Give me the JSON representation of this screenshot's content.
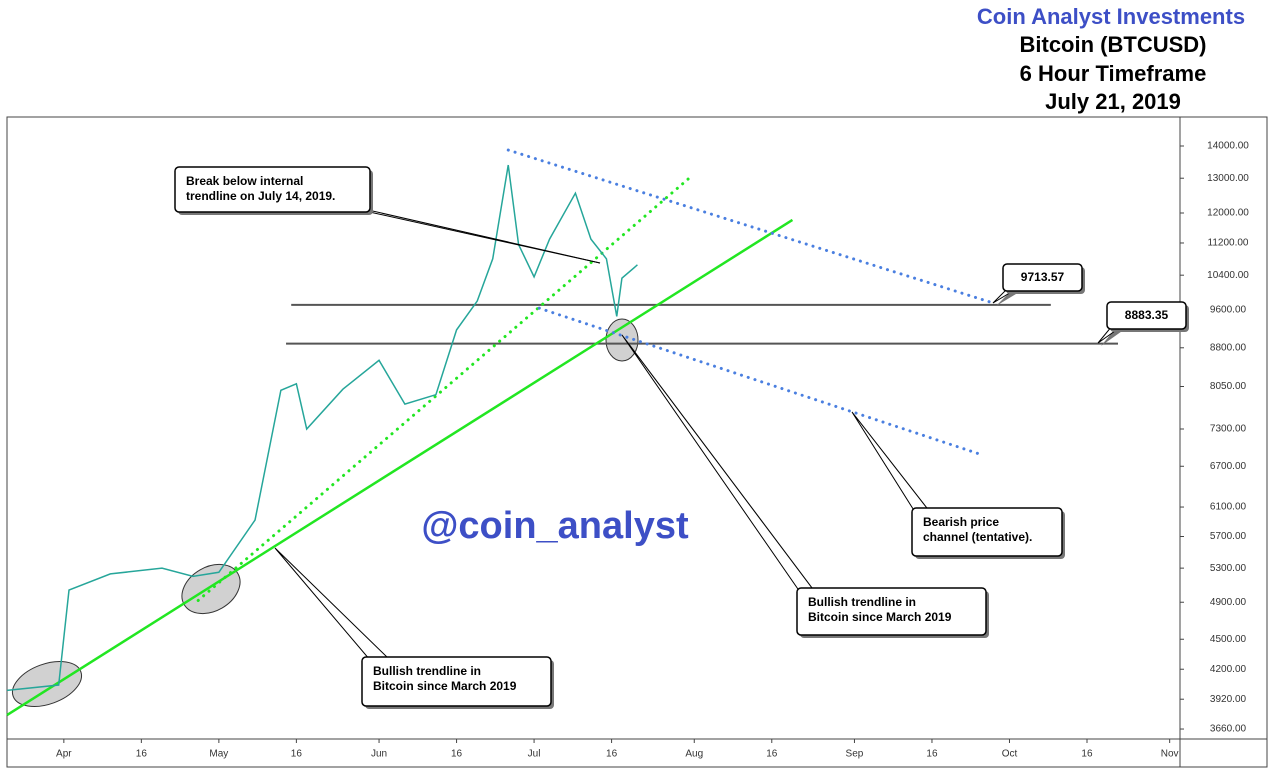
{
  "header": {
    "brand": "Coin Analyst Investments",
    "title": "Bitcoin (BTCUSD)",
    "timeframe": "6 Hour Timeframe",
    "date": "July 21, 2019"
  },
  "chart_data": {
    "type": "line",
    "x": [
      "2019-03-21",
      "2019-03-31",
      "2019-04-02",
      "2019-04-10",
      "2019-04-20",
      "2019-04-26",
      "2019-05-01",
      "2019-05-08",
      "2019-05-13",
      "2019-05-16",
      "2019-05-18",
      "2019-05-25",
      "2019-06-01",
      "2019-06-06",
      "2019-06-12",
      "2019-06-16",
      "2019-06-20",
      "2019-06-23",
      "2019-06-26",
      "2019-06-28",
      "2019-07-01",
      "2019-07-04",
      "2019-07-09",
      "2019-07-12",
      "2019-07-15",
      "2019-07-17",
      "2019-07-18",
      "2019-07-21"
    ],
    "values": [
      4000,
      4050,
      5040,
      5230,
      5300,
      5200,
      5250,
      5920,
      7980,
      8100,
      7300,
      8000,
      8550,
      7730,
      7900,
      9170,
      9800,
      10800,
      13400,
      11160,
      10360,
      11300,
      12560,
      11300,
      10800,
      9460,
      10330,
      10650
    ],
    "color": "#26a69a",
    "log_scale": true,
    "xlim": [
      "2019-03-21",
      "2019-11-03"
    ],
    "ylim": [
      3577,
      14932
    ],
    "yticks": [
      {
        "value": 14000,
        "label": "14000.00"
      },
      {
        "value": 13000,
        "label": "13000.00"
      },
      {
        "value": 12000,
        "label": "12000.00"
      },
      {
        "value": 11200,
        "label": "11200.00"
      },
      {
        "value": 10400,
        "label": "10400.00"
      },
      {
        "value": 9600,
        "label": "9600.00"
      },
      {
        "value": 8800,
        "label": "8800.00"
      },
      {
        "value": 8050,
        "label": "8050.00"
      },
      {
        "value": 7300,
        "label": "7300.00"
      },
      {
        "value": 6700,
        "label": "6700.00"
      },
      {
        "value": 6100,
        "label": "6100.00"
      },
      {
        "value": 5700,
        "label": "5700.00"
      },
      {
        "value": 5300,
        "label": "5300.00"
      },
      {
        "value": 4900,
        "label": "4900.00"
      },
      {
        "value": 4500,
        "label": "4500.00"
      },
      {
        "value": 4200,
        "label": "4200.00"
      },
      {
        "value": 3920,
        "label": "3920.00"
      },
      {
        "value": 3660,
        "label": "3660.00"
      }
    ],
    "xticks": [
      {
        "value": "2019-04-01",
        "label": "Apr"
      },
      {
        "value": "2019-04-16",
        "label": "16"
      },
      {
        "value": "2019-05-01",
        "label": "May"
      },
      {
        "value": "2019-05-16",
        "label": "16"
      },
      {
        "value": "2019-06-01",
        "label": "Jun"
      },
      {
        "value": "2019-06-16",
        "label": "16"
      },
      {
        "value": "2019-07-01",
        "label": "Jul"
      },
      {
        "value": "2019-07-16",
        "label": "16"
      },
      {
        "value": "2019-08-01",
        "label": "Aug"
      },
      {
        "value": "2019-08-16",
        "label": "16"
      },
      {
        "value": "2019-09-01",
        "label": "Sep"
      },
      {
        "value": "2019-09-16",
        "label": "16"
      },
      {
        "value": "2019-10-01",
        "label": "Oct"
      },
      {
        "value": "2019-10-16",
        "label": "16"
      },
      {
        "value": "2019-11-01",
        "label": "Nov"
      }
    ],
    "levels": [
      {
        "value": 9713.57,
        "x": [
          "2019-05-15",
          "2019-10-09"
        ],
        "color": "#555555"
      },
      {
        "value": 8883.35,
        "x": [
          "2019-05-14",
          "2019-10-22"
        ],
        "color": "#555555"
      }
    ],
    "trendlines": [
      {
        "x": [
          "2019-03-21",
          "2019-08-20"
        ],
        "values": [
          3780,
          11810
        ],
        "color": "#22e622",
        "style": "solid"
      },
      {
        "x": [
          "2019-04-27",
          "2019-07-31"
        ],
        "values": [
          4920,
          13000
        ],
        "color": "#22e622",
        "style": "dotted"
      },
      {
        "x": [
          "2019-06-26",
          "2019-09-28"
        ],
        "values": [
          13870,
          9750
        ],
        "color": "#4a7fe0",
        "style": "dotted"
      },
      {
        "x": [
          "2019-07-02",
          "2019-09-26"
        ],
        "values": [
          9640,
          6870
        ],
        "color": "#4a7fe0",
        "style": "dotted"
      }
    ],
    "watermark": "@coin_analyst",
    "annotations": [
      {
        "lines": [
          "Break below internal",
          "trendline on July 14, 2019."
        ]
      },
      {
        "lines": [
          "Bullish trendline in",
          "Bitcoin since March 2019"
        ]
      },
      {
        "lines": [
          "Bullish trendline in",
          "Bitcoin since March 2019"
        ]
      },
      {
        "lines": [
          "Bearish price",
          "channel (tentative)."
        ]
      }
    ]
  }
}
